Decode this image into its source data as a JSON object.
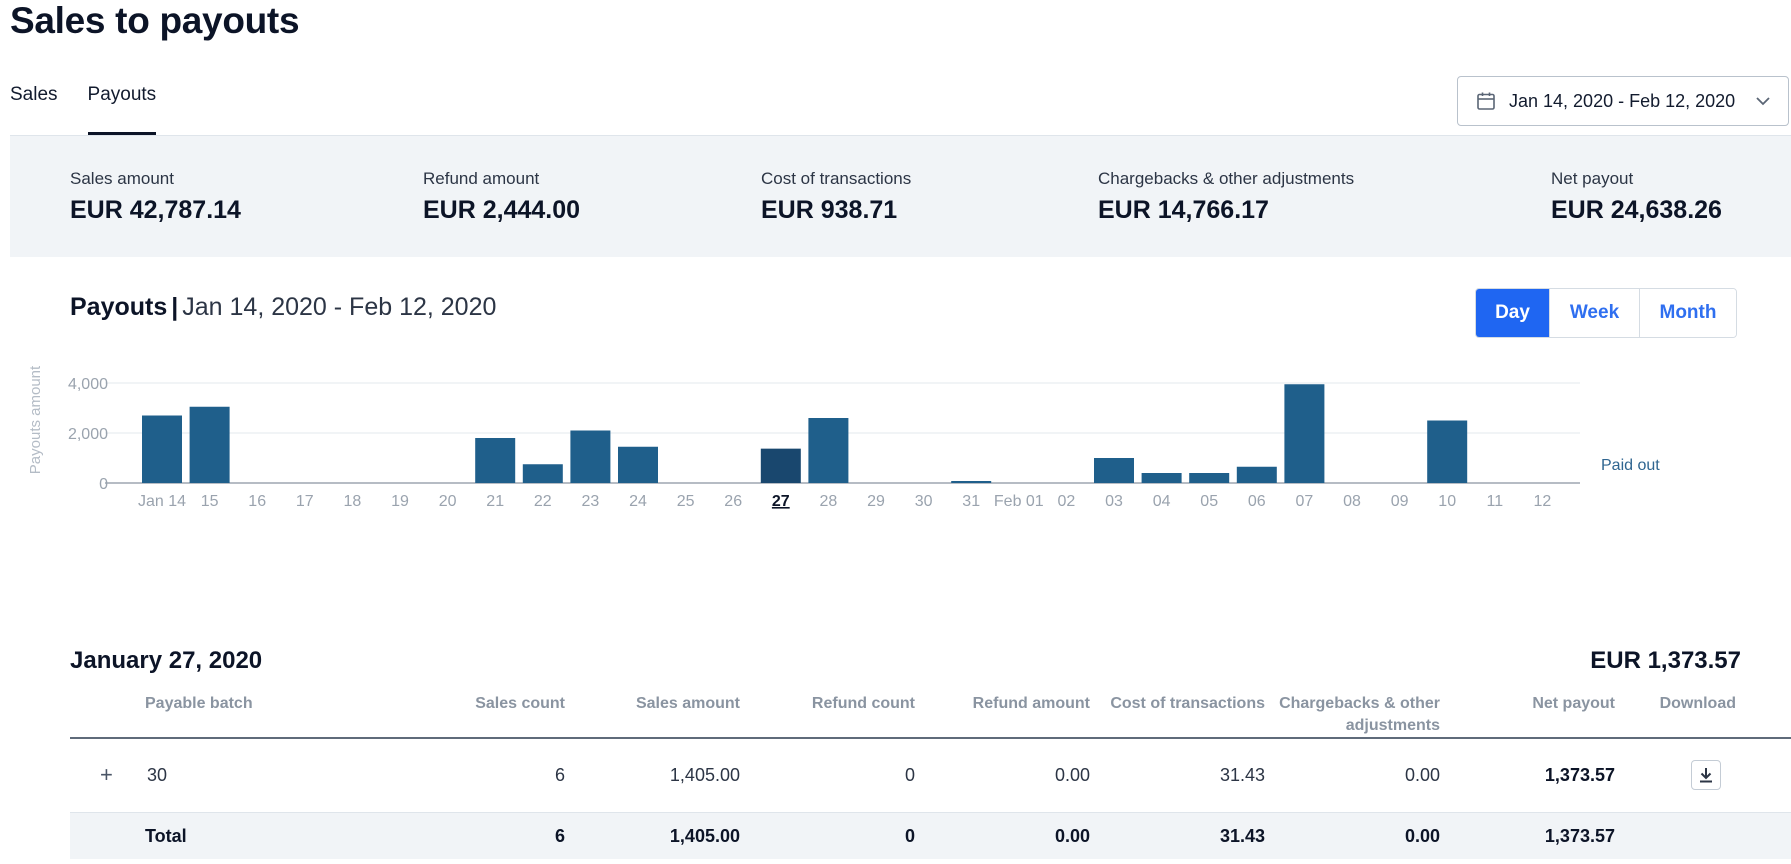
{
  "page": {
    "title": "Sales to payouts"
  },
  "tabs": [
    {
      "label": "Sales",
      "active": false
    },
    {
      "label": "Payouts",
      "active": true
    }
  ],
  "date_range": {
    "label": "Jan 14, 2020 - Feb 12, 2020",
    "icon": "calendar-icon",
    "chevron": "chevron-down-icon"
  },
  "summary": [
    {
      "label": "Sales amount",
      "value": "EUR 42,787.14"
    },
    {
      "label": "Refund amount",
      "value": "EUR 2,444.00"
    },
    {
      "label": "Cost of transactions",
      "value": "EUR 938.71"
    },
    {
      "label": "Chargebacks & other adjustments",
      "value": "EUR 14,766.17"
    },
    {
      "label": "Net payout",
      "value": "EUR 24,638.26"
    }
  ],
  "chart_header": {
    "title": "Payouts",
    "separator": "|",
    "range": "Jan 14, 2020 - Feb 12, 2020"
  },
  "granularity": {
    "options": [
      "Day",
      "Week",
      "Month"
    ],
    "selected": "Day"
  },
  "colors": {
    "bar": "#1f5f8b",
    "bar_selected": "#19476e",
    "accent": "#1f66f2",
    "summary_bg": "#f1f4f7"
  },
  "chart_data": {
    "type": "bar",
    "ylabel": "Payouts amount",
    "ylim": [
      0,
      4000
    ],
    "yticks": [
      "0",
      "2,000",
      "4,000"
    ],
    "categories": [
      "Jan 14",
      "15",
      "16",
      "17",
      "18",
      "19",
      "20",
      "21",
      "22",
      "23",
      "24",
      "25",
      "26",
      "27",
      "28",
      "29",
      "30",
      "31",
      "Feb 01",
      "02",
      "03",
      "04",
      "05",
      "06",
      "07",
      "08",
      "09",
      "10",
      "11",
      "12"
    ],
    "series": [
      {
        "name": "Paid out",
        "values": [
          2700,
          3050,
          0,
          0,
          0,
          0,
          0,
          1800,
          750,
          2100,
          1450,
          0,
          0,
          1374,
          2600,
          0,
          0,
          80,
          0,
          0,
          1000,
          400,
          400,
          650,
          3950,
          0,
          0,
          2500,
          0,
          0
        ]
      }
    ],
    "selected_category": "27",
    "grid": true,
    "legend": "right"
  },
  "detail": {
    "title": "January 27, 2020",
    "total": "EUR 1,373.57",
    "columns": [
      "Payable batch",
      "Sales count",
      "Sales amount",
      "Refund count",
      "Refund amount",
      "Cost of transactions",
      "Chargebacks & other",
      "adjustments",
      "Net payout",
      "Download"
    ],
    "rows": [
      {
        "expand": "+",
        "batch": "30",
        "sales_count": "6",
        "sales_amount": "1,405.00",
        "refund_count": "0",
        "refund_amount": "0.00",
        "cost": "31.43",
        "chargebacks": "0.00",
        "net": "1,373.57",
        "download_icon": "download-icon"
      }
    ],
    "totals": {
      "label": "Total",
      "sales_count": "6",
      "sales_amount": "1,405.00",
      "refund_count": "0",
      "refund_amount": "0.00",
      "cost": "31.43",
      "chargebacks": "0.00",
      "net": "1,373.57"
    }
  }
}
